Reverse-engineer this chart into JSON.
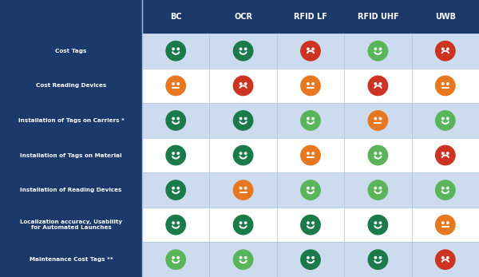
{
  "columns": [
    "BC",
    "OCR",
    "RFID LF",
    "RFID UHF",
    "UWB"
  ],
  "rows": [
    "Cost Tags",
    "Cost Reading Devices",
    "Installation of Tags on Carriers *",
    "Installation of Tags on Material",
    "Installation of Reading Devices",
    "Localization accuracy, Usability\nfor Automated Launches",
    "Maintenance Cost Tags **"
  ],
  "cells": [
    [
      {
        "color": "#1a7a4a",
        "type": "happy"
      },
      {
        "color": "#1a7a4a",
        "type": "happy"
      },
      {
        "color": "#cc3322",
        "type": "sad"
      },
      {
        "color": "#5ab55a",
        "type": "happy"
      },
      {
        "color": "#cc3322",
        "type": "sad"
      }
    ],
    [
      {
        "color": "#e87722",
        "type": "neutral"
      },
      {
        "color": "#cc3322",
        "type": "sad"
      },
      {
        "color": "#e87722",
        "type": "neutral"
      },
      {
        "color": "#cc3322",
        "type": "sad"
      },
      {
        "color": "#e87722",
        "type": "neutral"
      }
    ],
    [
      {
        "color": "#1a7a4a",
        "type": "happy"
      },
      {
        "color": "#1a7a4a",
        "type": "happy"
      },
      {
        "color": "#5ab55a",
        "type": "happy"
      },
      {
        "color": "#e87722",
        "type": "neutral"
      },
      {
        "color": "#5ab55a",
        "type": "happy"
      }
    ],
    [
      {
        "color": "#1a7a4a",
        "type": "happy"
      },
      {
        "color": "#1a7a4a",
        "type": "happy"
      },
      {
        "color": "#e87722",
        "type": "neutral"
      },
      {
        "color": "#5ab55a",
        "type": "happy"
      },
      {
        "color": "#cc3322",
        "type": "sad"
      }
    ],
    [
      {
        "color": "#1a7a4a",
        "type": "happy"
      },
      {
        "color": "#e87722",
        "type": "neutral"
      },
      {
        "color": "#5ab55a",
        "type": "happy"
      },
      {
        "color": "#5ab55a",
        "type": "happy"
      },
      {
        "color": "#5ab55a",
        "type": "happy"
      }
    ],
    [
      {
        "color": "#1a7a4a",
        "type": "happy"
      },
      {
        "color": "#1a7a4a",
        "type": "happy"
      },
      {
        "color": "#1a7a4a",
        "type": "happy"
      },
      {
        "color": "#1a7a4a",
        "type": "happy"
      },
      {
        "color": "#e87722",
        "type": "neutral"
      }
    ],
    [
      {
        "color": "#5ab55a",
        "type": "happy"
      },
      {
        "color": "#5ab55a",
        "type": "happy"
      },
      {
        "color": "#1a7a4a",
        "type": "happy"
      },
      {
        "color": "#1a7a4a",
        "type": "happy"
      },
      {
        "color": "#cc3322",
        "type": "sad"
      }
    ]
  ],
  "header_bg": "#1b3a6b",
  "header_text": "#ffffff",
  "row_label_bg": "#1b3a6b",
  "row_label_text": "#ffffff",
  "cell_bg_blue": "#ccdcee",
  "cell_bg_white": "#ffffff",
  "col_divider": "#a8c4dc",
  "row_divider": "#a8c4dc",
  "fig_width": 6.0,
  "fig_height": 3.47,
  "dpi": 100
}
